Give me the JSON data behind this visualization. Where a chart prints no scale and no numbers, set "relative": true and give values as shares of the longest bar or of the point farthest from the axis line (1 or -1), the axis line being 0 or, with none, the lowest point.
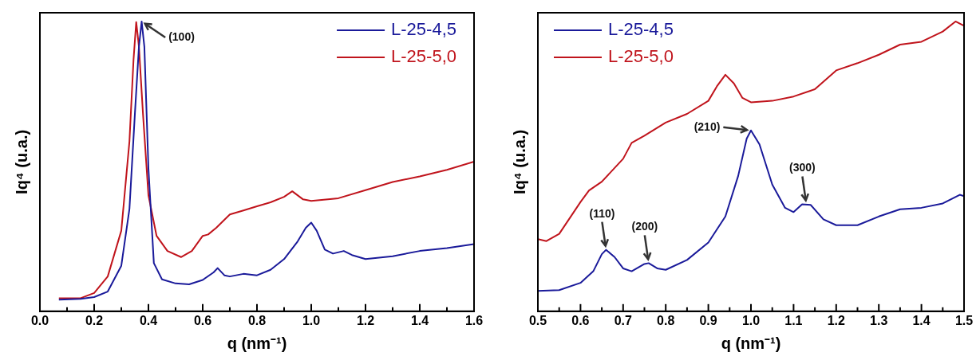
{
  "chart_data": [
    {
      "type": "line",
      "xlabel": "q (nm⁻¹)",
      "ylabel": "Iq⁴ (u.a.)",
      "relative": true,
      "legend": "top right",
      "xlim": [
        0,
        1.6
      ],
      "xticks": [
        {
          "value": 0,
          "label": "0.0"
        },
        {
          "value": 0.1,
          "label": null
        },
        {
          "value": 0.2,
          "label": "0.2"
        },
        {
          "value": 0.3,
          "label": null
        },
        {
          "value": 0.4,
          "label": "0.4"
        },
        {
          "value": 0.5,
          "label": null
        },
        {
          "value": 0.6,
          "label": "0.6"
        },
        {
          "value": 0.7,
          "label": null
        },
        {
          "value": 0.8,
          "label": "0.8"
        },
        {
          "value": 0.9,
          "label": null
        },
        {
          "value": 1.0,
          "label": "1.0"
        },
        {
          "value": 1.1,
          "label": null
        },
        {
          "value": 1.2,
          "label": "1.2"
        },
        {
          "value": 1.3,
          "label": null
        },
        {
          "value": 1.4,
          "label": "1.4"
        },
        {
          "value": 1.5,
          "label": null
        },
        {
          "value": 1.6,
          "label": "1.6"
        }
      ],
      "annotations": [
        {
          "text": "(100)",
          "x": 0.375,
          "y": 1.0
        }
      ],
      "series": [
        {
          "name": "L-25-4,5",
          "color": "#1a1a9a",
          "x": [
            0.07,
            0.15,
            0.2,
            0.25,
            0.3,
            0.33,
            0.35,
            0.365,
            0.375,
            0.385,
            0.4,
            0.42,
            0.45,
            0.5,
            0.55,
            0.6,
            0.64,
            0.655,
            0.68,
            0.7,
            0.75,
            0.8,
            0.85,
            0.9,
            0.95,
            0.98,
            1.0,
            1.02,
            1.05,
            1.08,
            1.12,
            1.15,
            1.2,
            1.3,
            1.4,
            1.5,
            1.6
          ],
          "values": [
            0.04,
            0.043,
            0.049,
            0.068,
            0.157,
            0.353,
            0.68,
            0.913,
            1.0,
            0.913,
            0.493,
            0.166,
            0.11,
            0.096,
            0.093,
            0.108,
            0.134,
            0.149,
            0.124,
            0.12,
            0.129,
            0.124,
            0.143,
            0.18,
            0.241,
            0.288,
            0.306,
            0.278,
            0.213,
            0.199,
            0.208,
            0.194,
            0.18,
            0.19,
            0.208,
            0.218,
            0.232
          ]
        },
        {
          "name": "L-25-5,0",
          "color": "#c0141c",
          "x": [
            0.07,
            0.15,
            0.2,
            0.25,
            0.3,
            0.33,
            0.345,
            0.355,
            0.365,
            0.38,
            0.4,
            0.43,
            0.47,
            0.52,
            0.56,
            0.6,
            0.62,
            0.65,
            0.7,
            0.75,
            0.8,
            0.85,
            0.9,
            0.93,
            0.97,
            1.0,
            1.1,
            1.2,
            1.3,
            1.4,
            1.5,
            1.6
          ],
          "values": [
            0.045,
            0.045,
            0.063,
            0.12,
            0.278,
            0.586,
            0.867,
            0.998,
            0.913,
            0.68,
            0.4,
            0.26,
            0.208,
            0.187,
            0.208,
            0.26,
            0.265,
            0.288,
            0.334,
            0.348,
            0.362,
            0.376,
            0.395,
            0.414,
            0.386,
            0.381,
            0.39,
            0.418,
            0.446,
            0.465,
            0.488,
            0.516
          ]
        }
      ]
    },
    {
      "type": "line",
      "xlabel": "q (nm⁻¹)",
      "ylabel": "Iq⁴ (u.a.)",
      "relative": true,
      "legend": "top left",
      "xlim": [
        0.5,
        1.5
      ],
      "xticks": [
        0.5,
        {
          "value": 0.55,
          "label": null
        },
        0.6,
        {
          "value": 0.65,
          "label": null
        },
        0.7,
        {
          "value": 0.75,
          "label": null
        },
        0.8,
        {
          "value": 0.85,
          "label": null
        },
        0.9,
        {
          "value": 0.95,
          "label": null
        },
        {
          "value": 1.0,
          "label": "1.0"
        },
        {
          "value": 1.05,
          "label": null
        },
        1.1,
        {
          "value": 1.15,
          "label": null
        },
        1.2,
        {
          "value": 1.25,
          "label": null
        },
        1.3,
        {
          "value": 1.35,
          "label": null
        },
        1.4,
        {
          "value": 1.45,
          "label": null
        },
        1.5
      ],
      "annotations": [
        {
          "text": "(110)",
          "x": 0.66,
          "y": 0.212
        },
        {
          "text": "(200)",
          "x": 0.76,
          "y": 0.166
        },
        {
          "text": "(210)",
          "x": 1.0,
          "y": 0.624
        },
        {
          "text": "(300)",
          "x": 1.13,
          "y": 0.369
        }
      ],
      "series": [
        {
          "name": "L-25-4,5",
          "color": "#1a1a9a",
          "x": [
            0.5,
            0.55,
            0.6,
            0.63,
            0.65,
            0.66,
            0.68,
            0.7,
            0.72,
            0.75,
            0.76,
            0.78,
            0.8,
            0.85,
            0.9,
            0.94,
            0.97,
            0.99,
            1.0,
            1.02,
            1.05,
            1.08,
            1.1,
            1.12,
            1.14,
            1.17,
            1.2,
            1.25,
            1.3,
            1.35,
            1.4,
            1.45,
            1.49,
            1.5
          ],
          "values": [
            0.07,
            0.073,
            0.098,
            0.138,
            0.197,
            0.212,
            0.187,
            0.148,
            0.138,
            0.163,
            0.166,
            0.148,
            0.143,
            0.177,
            0.237,
            0.327,
            0.467,
            0.596,
            0.624,
            0.576,
            0.437,
            0.357,
            0.342,
            0.369,
            0.367,
            0.317,
            0.297,
            0.297,
            0.327,
            0.352,
            0.357,
            0.372,
            0.402,
            0.397
          ]
        },
        {
          "name": "L-25-5,0",
          "color": "#c0141c",
          "x": [
            0.5,
            0.52,
            0.55,
            0.6,
            0.62,
            0.65,
            0.7,
            0.72,
            0.75,
            0.8,
            0.85,
            0.9,
            0.92,
            0.94,
            0.96,
            0.98,
            1.0,
            1.05,
            1.1,
            1.15,
            1.2,
            1.25,
            1.3,
            1.35,
            1.4,
            1.45,
            1.48,
            1.5
          ],
          "values": [
            0.249,
            0.242,
            0.267,
            0.377,
            0.417,
            0.447,
            0.526,
            0.581,
            0.606,
            0.651,
            0.681,
            0.726,
            0.776,
            0.816,
            0.786,
            0.736,
            0.721,
            0.726,
            0.741,
            0.766,
            0.831,
            0.856,
            0.885,
            0.92,
            0.93,
            0.965,
            1.0,
            0.985
          ]
        }
      ]
    }
  ]
}
